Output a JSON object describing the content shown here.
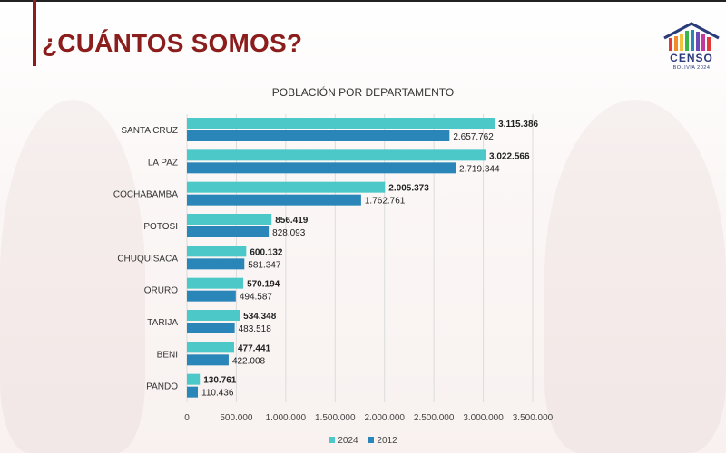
{
  "slide": {
    "title": "¿CUÁNTOS SOMOS?",
    "logo_text": "CENSO",
    "logo_subtext": "BOLIVIA 2024"
  },
  "colors": {
    "title": "#8b1d1d",
    "series_2024": "#4dc8c8",
    "series_2012": "#2a86b8",
    "grid": "#dcdcdc"
  },
  "chart_data": {
    "type": "bar",
    "orientation": "horizontal",
    "title": "POBLACIÓN POR DEPARTAMENTO",
    "categories": [
      "SANTA CRUZ",
      "LA PAZ",
      "COCHABAMBA",
      "POTOSI",
      "CHUQUISACA",
      "ORURO",
      "TARIJA",
      "BENI",
      "PANDO"
    ],
    "series": [
      {
        "name": "2024",
        "values": [
          3115386,
          3022566,
          2005373,
          856419,
          600132,
          570194,
          534348,
          477441,
          130761
        ],
        "labels": [
          "3.115.386",
          "3.022.566",
          "2.005.373",
          "856.419",
          "600.132",
          "570.194",
          "534.348",
          "477.441",
          "130.761"
        ]
      },
      {
        "name": "2012",
        "values": [
          2657762,
          2719344,
          1762761,
          828093,
          581347,
          494587,
          483518,
          422008,
          110436
        ],
        "labels": [
          "2.657.762",
          "2.719.344",
          "1.762.761",
          "828.093",
          "581.347",
          "494.587",
          "483.518",
          "422.008",
          "110.436"
        ]
      }
    ],
    "xlim": [
      0,
      3500000
    ],
    "xticks": [
      0,
      500000,
      1000000,
      1500000,
      2000000,
      2500000,
      3000000,
      3500000
    ],
    "xtick_labels": [
      "0",
      "500.000",
      "1.000.000",
      "1.500.000",
      "2.000.000",
      "2.500.000",
      "3.000.000",
      "3.500.000"
    ],
    "grid": true,
    "legend": "bottom"
  }
}
